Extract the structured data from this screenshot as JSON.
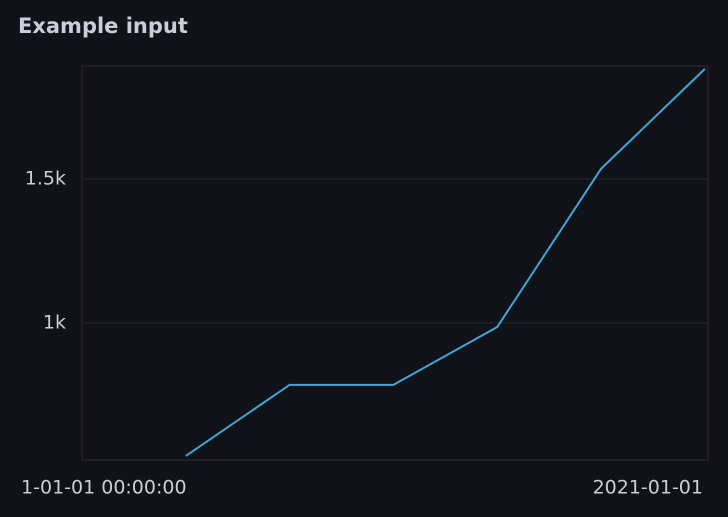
{
  "chart_data": {
    "type": "line",
    "title": "Example input",
    "x": [
      1,
      2,
      3,
      4,
      5,
      6
    ],
    "series": [
      {
        "color": "#3ea6db",
        "values": [
          538,
          785,
          785,
          986,
          1535,
          1882
        ]
      }
    ],
    "xlim": [
      0,
      6.03
    ],
    "xticks": [
      {
        "value": 0.21,
        "label": "1-01-01 00:00:00"
      },
      {
        "value": 5.45,
        "label": "2021-01-01"
      }
    ],
    "ylim": [
      524,
      1892
    ],
    "yticks": [
      {
        "value": 1000,
        "label": "1k"
      },
      {
        "value": 1500,
        "label": "1.5k"
      }
    ],
    "grid": true
  }
}
